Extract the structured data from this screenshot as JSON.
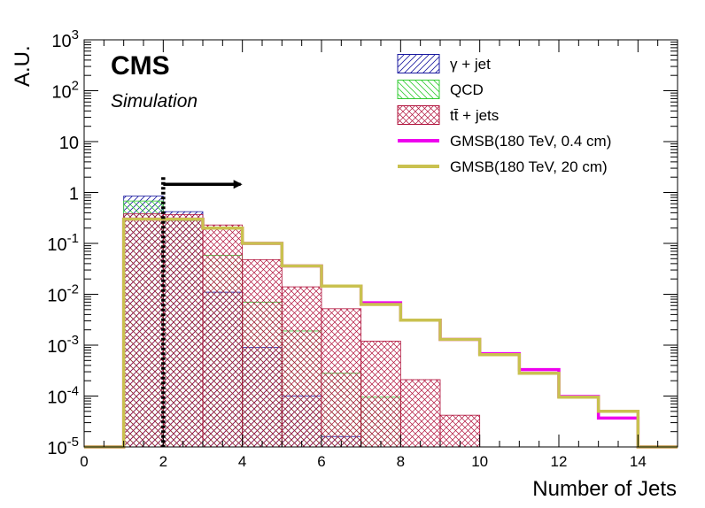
{
  "chart_data": {
    "type": "histogram",
    "xlabel": "Number of Jets",
    "ylabel": "A.U.",
    "xlim": [
      0,
      15
    ],
    "ylim": [
      1e-05,
      1000
    ],
    "yscale": "log",
    "bin_edges": [
      0,
      1,
      2,
      3,
      4,
      5,
      6,
      7,
      8,
      9,
      10,
      11,
      12,
      13,
      14,
      15
    ],
    "x_ticks": [
      "0",
      "2",
      "4",
      "6",
      "8",
      "10",
      "12",
      "14"
    ],
    "y_ticks": [
      {
        "base": "10",
        "exp": "-5"
      },
      {
        "base": "10",
        "exp": "-4"
      },
      {
        "base": "10",
        "exp": "-3"
      },
      {
        "base": "10",
        "exp": "-2"
      },
      {
        "base": "10",
        "exp": "-1"
      },
      {
        "base": "1",
        "exp": ""
      },
      {
        "base": "10",
        "exp": ""
      },
      {
        "base": "10",
        "exp": "2"
      },
      {
        "base": "10",
        "exp": "3"
      }
    ],
    "cms_label": "CMS",
    "sim_label": "Simulation",
    "legend_position": "top-right",
    "cut": {
      "x": 2,
      "direction": "right"
    },
    "series": [
      {
        "name": "γ + jet",
        "style": "hatch-diag",
        "color": "#1a1aa0",
        "values": [
          0,
          0.85,
          0.42,
          0.011,
          0.0009,
          0.0001,
          1.6e-05,
          0,
          0,
          0,
          0,
          0,
          0,
          0,
          0
        ]
      },
      {
        "name": "QCD",
        "style": "hatch-anti",
        "color": "#33cc33",
        "values": [
          0,
          0.68,
          0.28,
          0.058,
          0.007,
          0.0019,
          0.00028,
          9.5e-05,
          0,
          0,
          0,
          0,
          0,
          0,
          0
        ]
      },
      {
        "name": "tt̄ + jets",
        "style": "hatch-cross",
        "color": "#b0103a",
        "values": [
          0,
          0.38,
          0.37,
          0.23,
          0.048,
          0.014,
          0.0052,
          0.0012,
          0.00021,
          4.2e-05,
          0,
          0,
          0,
          0,
          0
        ]
      },
      {
        "name": "GMSB(180 TeV, 0.4 cm)",
        "style": "line",
        "color": "#ee00ee",
        "values": [
          1e-05,
          0.3,
          0.3,
          0.2,
          0.1,
          0.036,
          0.0145,
          0.0068,
          0.0031,
          0.0013,
          0.00068,
          0.00033,
          9.8e-05,
          3.7e-05,
          1e-05
        ]
      },
      {
        "name": "GMSB(180 TeV, 20 cm)",
        "style": "line",
        "color": "#c9c14f",
        "values": [
          1e-05,
          0.3,
          0.3,
          0.2,
          0.1,
          0.036,
          0.0145,
          0.0063,
          0.0031,
          0.0013,
          0.00065,
          0.00028,
          9.5e-05,
          5e-05,
          1e-05
        ]
      }
    ]
  }
}
